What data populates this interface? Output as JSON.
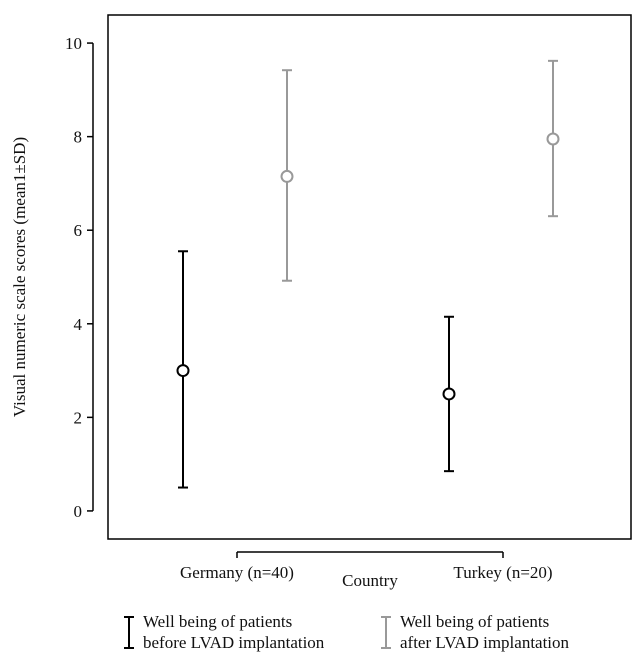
{
  "chart_data": {
    "type": "scatter",
    "subtype": "mean-with-error-bars",
    "categories": [
      "Germany (n=40)",
      "Turkey (n=20)"
    ],
    "xlabel": "Country",
    "ylabel": "Visual numeric scale scores (mean1±SD)",
    "ylim": [
      -0.6,
      10.6
    ],
    "yticks": [
      0,
      2,
      4,
      6,
      8,
      10
    ],
    "grid": false,
    "legend_position": "bottom",
    "series": [
      {
        "name": "Well being of patients before LVAD implantation",
        "legend_lines": [
          "Well being of patients",
          "before LVAD implantation"
        ],
        "color": "#000000",
        "means": [
          3.0,
          2.5
        ],
        "lower": [
          0.5,
          0.85
        ],
        "upper": [
          5.55,
          4.15
        ]
      },
      {
        "name": "Well being of patients after LVAD implantation",
        "legend_lines": [
          "Well being of patients",
          "after LVAD implantation"
        ],
        "color": "#999999",
        "means": [
          7.15,
          7.95
        ],
        "lower": [
          4.92,
          6.3
        ],
        "upper": [
          9.42,
          9.62
        ]
      }
    ]
  }
}
